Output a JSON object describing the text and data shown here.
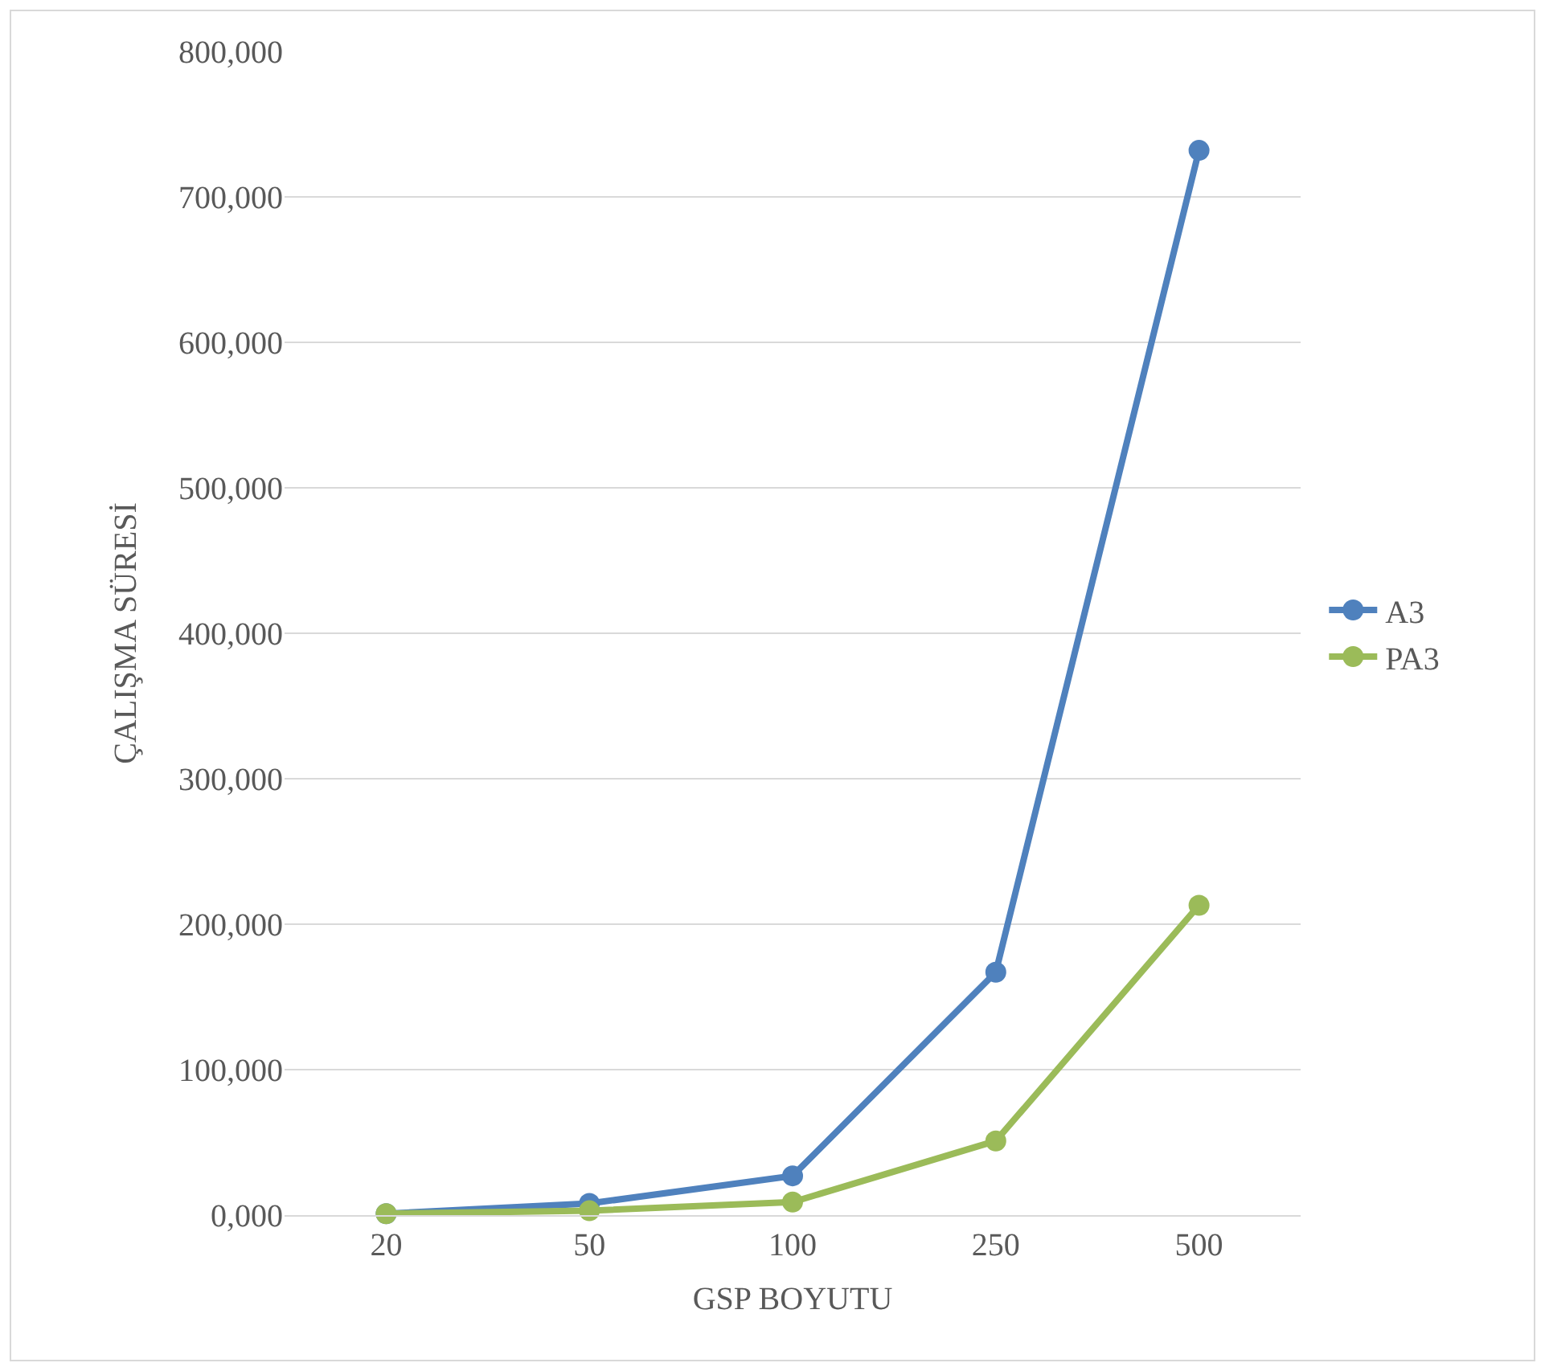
{
  "chart_data": {
    "type": "line",
    "xlabel": "GSP BOYUTU",
    "ylabel": "ÇALIŞMA SÜRESİ",
    "categories": [
      "20",
      "50",
      "100",
      "250",
      "500"
    ],
    "series": [
      {
        "name": "A3",
        "color": "#4f81bd",
        "values": [
          1000,
          8000,
          27000,
          167000,
          732000
        ]
      },
      {
        "name": "PA3",
        "color": "#9bbb59",
        "values": [
          1000,
          3000,
          9000,
          51000,
          213000
        ]
      }
    ],
    "ylim": [
      0,
      800000
    ],
    "yticks": [
      {
        "value": 0,
        "label": "0,000"
      },
      {
        "value": 100000,
        "label": "100,000"
      },
      {
        "value": 200000,
        "label": "200,000"
      },
      {
        "value": 300000,
        "label": "300,000"
      },
      {
        "value": 400000,
        "label": "400,000"
      },
      {
        "value": 500000,
        "label": "500,000"
      },
      {
        "value": 600000,
        "label": "600,000"
      },
      {
        "value": 700000,
        "label": "700,000"
      },
      {
        "value": 800000,
        "label": "800,000"
      }
    ],
    "grid": "y",
    "legend": "right",
    "marker": "circle",
    "line_style": "solid"
  }
}
